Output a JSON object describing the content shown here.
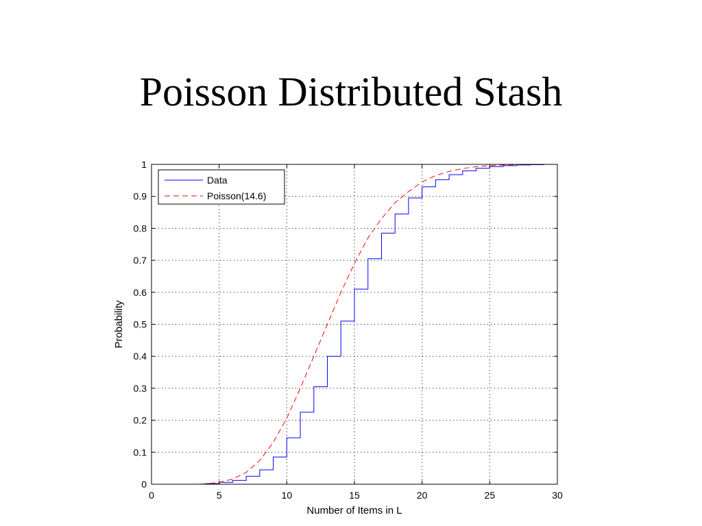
{
  "slide": {
    "title": "Poisson Distributed Stash"
  },
  "chart_data": {
    "type": "line",
    "title": "",
    "xlabel": "Number of Items in L",
    "ylabel": "Probability",
    "xlim": [
      0,
      30
    ],
    "ylim": [
      0,
      1
    ],
    "xticks": [
      0,
      5,
      10,
      15,
      20,
      25,
      30
    ],
    "yticks": [
      0,
      0.1,
      0.2,
      0.3,
      0.4,
      0.5,
      0.6,
      0.7,
      0.8,
      0.9,
      1
    ],
    "grid": true,
    "legend_position": "top-left",
    "series": [
      {
        "name": "Data",
        "style": "stairs",
        "color": "#0000ff",
        "x": [
          1,
          2,
          3,
          4,
          5,
          6,
          7,
          8,
          9,
          10,
          11,
          12,
          13,
          14,
          15,
          16,
          17,
          18,
          19,
          20,
          21,
          22,
          23,
          24,
          25,
          26,
          27,
          28,
          29,
          30
        ],
        "y": [
          0,
          0,
          0,
          0.002,
          0.006,
          0.012,
          0.025,
          0.045,
          0.085,
          0.145,
          0.225,
          0.305,
          0.4,
          0.51,
          0.61,
          0.705,
          0.785,
          0.845,
          0.895,
          0.93,
          0.952,
          0.968,
          0.98,
          0.988,
          0.993,
          0.996,
          0.998,
          0.999,
          1.0,
          1.0
        ]
      },
      {
        "name": "Poisson(14.6)",
        "style": "dashed",
        "color": "#ff0000",
        "x": [
          1,
          2,
          3,
          4,
          5,
          6,
          7,
          8,
          9,
          10,
          11,
          12,
          13,
          14,
          15,
          16,
          17,
          18,
          19,
          20,
          21,
          22,
          23,
          24,
          25,
          26,
          27,
          28,
          29,
          30
        ],
        "y": [
          0,
          0,
          0,
          0.001,
          0.006,
          0.016,
          0.037,
          0.074,
          0.131,
          0.206,
          0.3,
          0.4,
          0.5,
          0.6,
          0.69,
          0.77,
          0.83,
          0.88,
          0.915,
          0.945,
          0.965,
          0.978,
          0.987,
          0.993,
          0.996,
          0.998,
          0.999,
          1.0,
          1.0,
          1.0
        ]
      }
    ]
  }
}
